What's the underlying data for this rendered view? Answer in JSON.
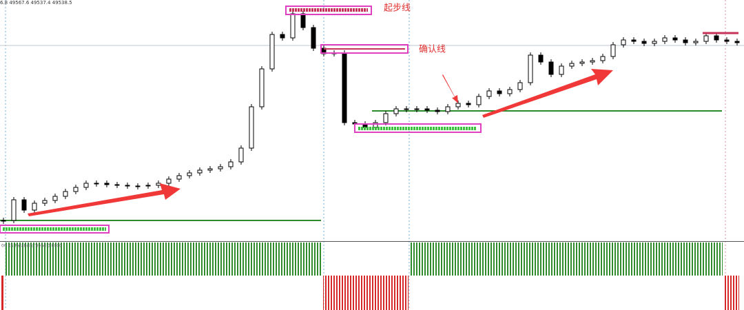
{
  "chart_data": {
    "type": "candlestick",
    "header": "6.8 49567.6 49537.4 49538.5",
    "indicator_label": "00 XS Parabolic Trend 0.0000",
    "annotations": [
      "起步线",
      "确认线"
    ],
    "ylim": [
      49000,
      49700
    ],
    "values": [
      49060,
      49120,
      49090,
      49110,
      49118,
      49130,
      49144,
      49156,
      49168,
      49168,
      49164,
      49162,
      49160,
      49160,
      49162,
      49168,
      49180,
      49190,
      49198,
      49206,
      49210,
      49216,
      49230,
      49270,
      49390,
      49500,
      49600,
      49590,
      49660,
      49620,
      49560,
      49544,
      49546,
      49344,
      49340,
      49330,
      49344,
      49370,
      49384,
      49384,
      49384,
      49380,
      49376,
      49390,
      49400,
      49396,
      49420,
      49436,
      49428,
      49440,
      49460,
      49540,
      49520,
      49484,
      49508,
      49516,
      49520,
      49524,
      49536,
      49570,
      49584,
      49580,
      49574,
      49580,
      49590,
      49584,
      49576,
      49580,
      49596,
      49584,
      49580,
      49576
    ]
  }
}
